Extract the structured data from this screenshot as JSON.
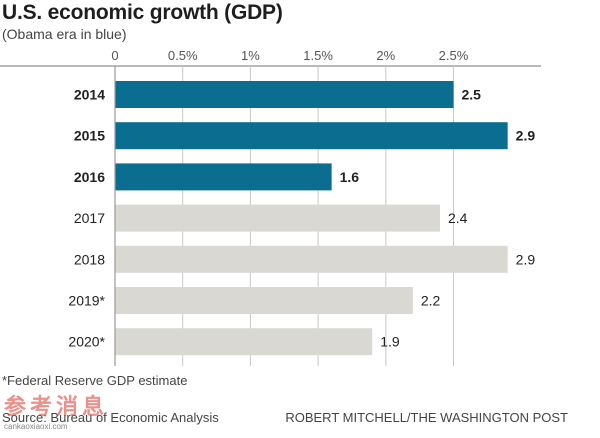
{
  "title": "U.S. economic growth (GDP)",
  "subtitle": "(Obama era in blue)",
  "chart_data": {
    "type": "bar",
    "orientation": "horizontal",
    "title": "U.S. economic growth (GDP)",
    "subtitle": "(Obama era in blue)",
    "categories": [
      "2014",
      "2015",
      "2016",
      "2017",
      "2018",
      "2019*",
      "2020*"
    ],
    "values": [
      2.5,
      2.9,
      1.6,
      2.4,
      2.9,
      2.2,
      1.9
    ],
    "value_labels": [
      "2.5",
      "2.9",
      "1.6",
      "2.4",
      "2.9",
      "2.2",
      "1.9"
    ],
    "highlight": [
      true,
      true,
      true,
      false,
      false,
      false,
      false
    ],
    "xlim": [
      0,
      3.1
    ],
    "xticks": [
      0,
      0.5,
      1,
      1.5,
      2,
      2.5
    ],
    "xtick_labels": [
      "0",
      "0.5%",
      "1%",
      "1.5%",
      "2%",
      "2.5%"
    ],
    "tick_position": "top",
    "grid": true,
    "legend": "none",
    "colors": {
      "highlight": "#0b6d8f",
      "normal": "#d9d8d3",
      "grid": "#c9c9c9",
      "axis": "#9a9a9a"
    }
  },
  "footnote": "*Federal Reserve GDP estimate",
  "source": "Source: Bureau of Economic Analysis",
  "credit": "ROBERT MITCHELL/THE WASHINGTON POST",
  "watermark": {
    "chars": "参考消息",
    "url": "cankaoxiaoxi.com"
  }
}
